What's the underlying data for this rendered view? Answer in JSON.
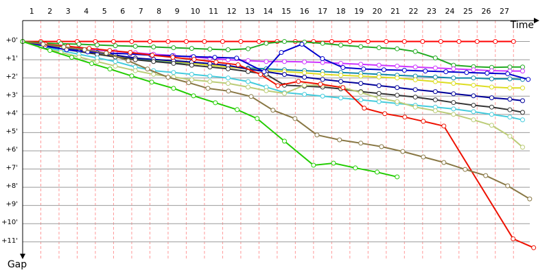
{
  "chart_data": {
    "type": "line",
    "x_label": "Time",
    "y_label": "Gap",
    "xlim": [
      0,
      28.5
    ],
    "ylim": [
      -1.15,
      12.4
    ],
    "xticks": [
      1,
      2,
      3,
      4,
      5,
      6,
      7,
      8,
      9,
      10,
      11,
      12,
      13,
      14,
      15,
      16,
      17,
      18,
      19,
      20,
      21,
      22,
      23,
      24,
      25,
      26,
      27
    ],
    "yticks": [
      {
        "value": 0,
        "label": "+0'"
      },
      {
        "value": 1,
        "label": "+1'"
      },
      {
        "value": 2,
        "label": "+2'"
      },
      {
        "value": 3,
        "label": "+3'"
      },
      {
        "value": 4,
        "label": "+4'"
      },
      {
        "value": 5,
        "label": "+5'"
      },
      {
        "value": 6,
        "label": "+6'"
      },
      {
        "value": 7,
        "label": "+7'"
      },
      {
        "value": 8,
        "label": "+8'"
      },
      {
        "value": 9,
        "label": "+9'"
      },
      {
        "value": 10,
        "label": "+10'"
      },
      {
        "value": 11,
        "label": "+11'"
      }
    ],
    "grid": true,
    "series": [
      {
        "color": "#ff0000",
        "x": [
          0,
          1,
          2,
          3,
          4,
          5,
          6,
          7,
          8,
          9,
          10,
          11,
          12,
          13,
          14,
          15,
          16,
          17,
          18,
          19,
          20,
          21,
          22,
          23,
          24,
          25,
          26,
          27
        ],
        "values": [
          0,
          0,
          0,
          0,
          0,
          0,
          0,
          0,
          0,
          0,
          0,
          0,
          0,
          0,
          0,
          0,
          0,
          0,
          0,
          0,
          0,
          0,
          0,
          0,
          0,
          0,
          0,
          0
        ]
      },
      {
        "color": "#22aa22",
        "x": [
          0,
          1,
          2.1,
          3.1,
          4.1,
          5.1,
          6.2,
          7.2,
          8.3,
          9.3,
          10.3,
          11.3,
          12.4,
          13.4,
          14.4,
          15.5,
          16.5,
          17.5,
          18.6,
          19.6,
          20.6,
          21.6,
          22.7,
          23.7,
          24.8,
          25.8,
          26.8,
          27.5
        ],
        "values": [
          0,
          0.08,
          0.12,
          0.15,
          0.19,
          0.23,
          0.26,
          0.3,
          0.34,
          0.38,
          0.42,
          0.45,
          0.4,
          0.1,
          0,
          0.03,
          0.1,
          0.2,
          0.28,
          0.34,
          0.4,
          0.55,
          0.9,
          1.3,
          1.38,
          1.42,
          1.4,
          1.4
        ]
      },
      {
        "color": "#cc33ff",
        "x": [
          0,
          1,
          2.1,
          3.1,
          4.1,
          5.1,
          6.2,
          7.2,
          8.3,
          9.3,
          10.3,
          11.3,
          12.4,
          13.4,
          14.4,
          15.5,
          16.5,
          17.5,
          18.6,
          19.6,
          20.6,
          21.6,
          22.7,
          23.7,
          24.8,
          25.8,
          26.8,
          27.5
        ],
        "values": [
          0,
          0.15,
          0.3,
          0.4,
          0.48,
          0.55,
          0.62,
          0.7,
          0.77,
          0.85,
          0.92,
          1.0,
          1.05,
          1.1,
          1.1,
          1.12,
          1.15,
          1.2,
          1.25,
          1.3,
          1.35,
          1.4,
          1.45,
          1.5,
          1.55,
          1.6,
          1.62,
          1.62
        ]
      },
      {
        "color": "#1188aa",
        "x": [
          0,
          1,
          2.1,
          3.1,
          4.1,
          5.1,
          6.2,
          7.2,
          8.3,
          9.3,
          10.3,
          11.3,
          12.4,
          13.4,
          14.4,
          15.5,
          16.5,
          17.5,
          18.6,
          19.6,
          20.6,
          21.6,
          22.7,
          23.7,
          24.8,
          25.8,
          26.8,
          27.5
        ],
        "values": [
          0,
          0.2,
          0.35,
          0.5,
          0.65,
          0.8,
          0.95,
          1.05,
          1.15,
          1.2,
          1.3,
          1.4,
          1.45,
          1.5,
          1.55,
          1.6,
          1.65,
          1.7,
          1.75,
          1.8,
          1.85,
          1.9,
          1.95,
          2.0,
          2.0,
          2.05,
          2.05,
          2.08
        ]
      },
      {
        "color": "#dddd22",
        "x": [
          0,
          1,
          2.1,
          3.1,
          4.1,
          5.1,
          6.2,
          7.2,
          8.3,
          9.3,
          10.3,
          11.3,
          12.4,
          13.4,
          14.4,
          15.5,
          16.5,
          17.5,
          18.6,
          19.6,
          20.6,
          21.6,
          22.7,
          23.7,
          24.8,
          25.8,
          26.8,
          27.5
        ],
        "values": [
          0,
          0.2,
          0.35,
          0.5,
          0.65,
          0.8,
          0.9,
          1.0,
          1.1,
          1.2,
          1.3,
          1.4,
          1.5,
          1.6,
          1.65,
          1.72,
          1.8,
          1.85,
          1.9,
          1.95,
          2.0,
          2.1,
          2.2,
          2.3,
          2.4,
          2.5,
          2.55,
          2.55
        ]
      },
      {
        "color": "#000099",
        "x": [
          0,
          1,
          2.1,
          3.1,
          4.1,
          5.1,
          6.2,
          7.2,
          8.3,
          9.3,
          10.3,
          11.3,
          12.4,
          13.4,
          14.4,
          15.5,
          16.5,
          17.5,
          18.6,
          19.6,
          20.6,
          21.6,
          22.7,
          23.7,
          24.8,
          25.8,
          26.8,
          27.5
        ],
        "values": [
          0,
          0.19,
          0.38,
          0.49,
          0.6,
          0.75,
          0.91,
          0.98,
          1.06,
          1.13,
          1.21,
          1.32,
          1.51,
          1.66,
          1.81,
          1.96,
          2.08,
          2.19,
          2.3,
          2.42,
          2.53,
          2.64,
          2.75,
          2.87,
          2.98,
          3.09,
          3.17,
          3.25
        ]
      },
      {
        "color": "#333333",
        "x": [
          0,
          1,
          2.1,
          3.1,
          4.1,
          5.1,
          6.2,
          7.2,
          8.3,
          9.3,
          10.3,
          11.3,
          12.4,
          13.4,
          14.4,
          15.5,
          16.5,
          17.5,
          18.6,
          19.6,
          20.6,
          21.6,
          22.7,
          23.7,
          24.8,
          25.8,
          26.8,
          27.5
        ],
        "values": [
          0,
          0.2,
          0.4,
          0.55,
          0.7,
          0.85,
          1,
          1.1,
          1.2,
          1.3,
          1.4,
          1.5,
          1.65,
          1.8,
          2.4,
          2.45,
          2.5,
          2.6,
          2.75,
          2.85,
          2.95,
          3.05,
          3.2,
          3.35,
          3.5,
          3.6,
          3.75,
          3.89
        ]
      },
      {
        "color": "#44ccdd",
        "x": [
          0,
          1,
          2.1,
          3.1,
          4.1,
          5.1,
          6.2,
          7.2,
          8.3,
          9.3,
          10.3,
          11.3,
          12.4,
          13.4,
          14.4,
          15.5,
          16.5,
          17.5,
          18.6,
          19.6,
          20.6,
          21.6,
          22.7,
          23.7,
          24.8,
          25.8,
          26.8,
          27.5
        ],
        "values": [
          0,
          0.25,
          0.5,
          0.7,
          0.9,
          1.1,
          1.4,
          1.6,
          1.7,
          1.8,
          1.9,
          2.0,
          2.2,
          2.5,
          2.8,
          2.9,
          3.0,
          3.1,
          3.2,
          3.3,
          3.4,
          3.5,
          3.6,
          3.7,
          3.85,
          4.0,
          4.15,
          4.3
        ]
      },
      {
        "color": "#bbcc77",
        "x": [
          0,
          1,
          2.1,
          3.1,
          4.1,
          5.1,
          6.2,
          7.2,
          8.3,
          9.3,
          10.3,
          11.3,
          12.4,
          13.4,
          14.4,
          15.5,
          16.5,
          17.5,
          18.6,
          19.6,
          20.6,
          21.6,
          22.7,
          23.7,
          24.8,
          25.8,
          26.8,
          27.5
        ],
        "values": [
          0,
          0.3,
          0.6,
          0.85,
          1.1,
          1.35,
          1.6,
          1.8,
          1.95,
          2.1,
          2.2,
          2.3,
          2.5,
          2.7,
          2.85,
          2.4,
          2.4,
          2.5,
          2.8,
          3.1,
          3.3,
          3.6,
          3.8,
          4.0,
          4.3,
          4.6,
          5.2,
          5.8
        ]
      },
      {
        "color": "#0000cc",
        "x": [
          0,
          1.25,
          2.42,
          3.58,
          4.72,
          5.89,
          7.06,
          8.23,
          9.4,
          10.57,
          11.77,
          13.28,
          14.23,
          15.36,
          16.49,
          17.62,
          18.75,
          19.87,
          21,
          22.15,
          23.28,
          24.42,
          25.55,
          26.68,
          27.81
        ],
        "values": [
          0,
          0.26,
          0.45,
          0.57,
          0.64,
          0.68,
          0.75,
          0.79,
          0.83,
          0.87,
          0.91,
          1.66,
          0.6,
          0.15,
          0.94,
          1.43,
          1.51,
          1.55,
          1.58,
          1.62,
          1.66,
          1.7,
          1.74,
          1.77,
          2.08
        ]
      },
      {
        "color": "#ee1100",
        "x": [
          0,
          1.25,
          2.49,
          3.66,
          4.79,
          5.92,
          7.13,
          8.26,
          9.43,
          10.64,
          11.85,
          13.09,
          14.04,
          15.17,
          16.38,
          17.62,
          18.79,
          19.92,
          21.02,
          22.04,
          23.17,
          26.98,
          28.11
        ],
        "values": [
          0,
          0.15,
          0.26,
          0.38,
          0.49,
          0.6,
          0.75,
          0.87,
          0.98,
          1.13,
          1.28,
          1.81,
          2.42,
          2.19,
          2.34,
          2.53,
          3.66,
          3.96,
          4.15,
          4.38,
          4.64,
          10.83,
          11.32
        ]
      },
      {
        "color": "#887744",
        "x": [
          0,
          1.13,
          2.26,
          3.4,
          4.6,
          5.81,
          6.87,
          8,
          9.13,
          10.19,
          11.32,
          12.57,
          13.77,
          14.98,
          16.19,
          17.43,
          18.6,
          19.74,
          20.91,
          22.04,
          23.17,
          24.34,
          25.47,
          26.68,
          27.89
        ],
        "values": [
          0,
          0.15,
          0.3,
          0.45,
          0.64,
          1.06,
          1.51,
          1.96,
          2.26,
          2.57,
          2.72,
          3.02,
          3.77,
          4.23,
          5.13,
          5.4,
          5.58,
          5.77,
          6.04,
          6.34,
          6.64,
          7.02,
          7.36,
          7.92,
          8.64
        ]
      },
      {
        "color": "#22cc00",
        "x": [
          0,
          1.5,
          2.7,
          3.8,
          4.8,
          6,
          7.1,
          8.3,
          9.4,
          10.6,
          11.8,
          12.9,
          14.4,
          16,
          17.1,
          18.3,
          19.5,
          20.6
        ],
        "values": [
          0,
          0.49,
          0.87,
          1.21,
          1.51,
          1.89,
          2.23,
          2.57,
          2.98,
          3.36,
          3.74,
          4.23,
          5.47,
          6.79,
          6.68,
          6.94,
          7.17,
          7.43
        ]
      }
    ]
  }
}
